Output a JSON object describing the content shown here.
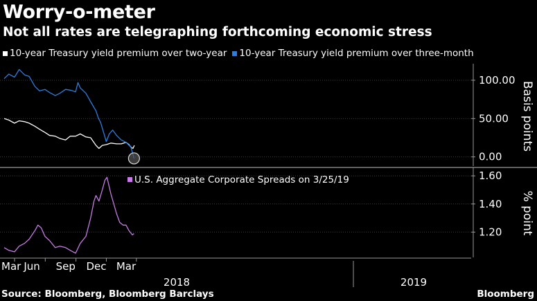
{
  "title": "Worry-o-meter",
  "subtitle": "Not all rates are telegraphing forthcoming economic stress",
  "top_chart_legend": [
    {
      "label": "10-year Treasury yield premium over two-year",
      "color": "#ffffff"
    },
    {
      "label": "10-year Treasury yield premium over three-month",
      "color": "#2f7de1"
    }
  ],
  "bottom_chart_legend": {
    "label": "U.S. Aggregate Corporate Spreads on 3/25/19",
    "color": "#c77ce6"
  },
  "x_axis": {
    "month_labels": [
      "Mar",
      "Jun",
      "Sep",
      "Dec",
      "Mar"
    ],
    "year_labels": [
      "2018",
      "2019"
    ]
  },
  "source": "Source: Bloomberg, Bloomberg Barclays",
  "brand": "Bloomberg",
  "chart_data": [
    {
      "type": "line",
      "ylabel": "Basis points",
      "ylim": [
        -12,
        118
      ],
      "yticks": [
        "0.00",
        "50.00",
        "100.00"
      ],
      "x_range": [
        "2018-03-01",
        "2019-03-29"
      ],
      "end_marker": "circle at last value",
      "grid": true,
      "series": [
        {
          "name": "10-year Treasury yield premium over two-year",
          "color": "#ffffff",
          "points": [
            [
              "2018-03-01",
              50
            ],
            [
              "2018-03-15",
              48
            ],
            [
              "2018-04-01",
              44
            ],
            [
              "2018-04-15",
              47
            ],
            [
              "2018-05-01",
              46
            ],
            [
              "2018-05-15",
              44
            ],
            [
              "2018-06-01",
              40
            ],
            [
              "2018-06-15",
              36
            ],
            [
              "2018-07-01",
              32
            ],
            [
              "2018-07-15",
              28
            ],
            [
              "2018-08-01",
              27
            ],
            [
              "2018-08-15",
              24
            ],
            [
              "2018-09-01",
              22
            ],
            [
              "2018-09-15",
              27
            ],
            [
              "2018-10-01",
              27
            ],
            [
              "2018-10-15",
              30
            ],
            [
              "2018-11-01",
              26
            ],
            [
              "2018-11-15",
              25
            ],
            [
              "2018-12-01",
              15
            ],
            [
              "2018-12-10",
              11
            ],
            [
              "2018-12-20",
              15
            ],
            [
              "2019-01-01",
              16
            ],
            [
              "2019-01-15",
              18
            ],
            [
              "2019-02-01",
              17
            ],
            [
              "2019-02-15",
              17
            ],
            [
              "2019-03-01",
              19
            ],
            [
              "2019-03-10",
              16
            ],
            [
              "2019-03-15",
              13
            ],
            [
              "2019-03-22",
              11
            ],
            [
              "2019-03-26",
              15
            ]
          ]
        },
        {
          "name": "10-year Treasury yield premium over three-month",
          "color": "#2f7de1",
          "points": [
            [
              "2018-03-01",
              102
            ],
            [
              "2018-03-15",
              108
            ],
            [
              "2018-04-01",
              104
            ],
            [
              "2018-04-15",
              114
            ],
            [
              "2018-05-01",
              107
            ],
            [
              "2018-05-15",
              105
            ],
            [
              "2018-06-01",
              92
            ],
            [
              "2018-06-15",
              86
            ],
            [
              "2018-07-01",
              88
            ],
            [
              "2018-07-15",
              84
            ],
            [
              "2018-08-01",
              80
            ],
            [
              "2018-08-15",
              83
            ],
            [
              "2018-09-01",
              88
            ],
            [
              "2018-09-15",
              87
            ],
            [
              "2018-10-01",
              85
            ],
            [
              "2018-10-08",
              97
            ],
            [
              "2018-10-15",
              90
            ],
            [
              "2018-11-01",
              83
            ],
            [
              "2018-11-15",
              72
            ],
            [
              "2018-12-01",
              60
            ],
            [
              "2018-12-08",
              51
            ],
            [
              "2018-12-15",
              45
            ],
            [
              "2019-01-01",
              20
            ],
            [
              "2019-01-10",
              30
            ],
            [
              "2019-01-20",
              35
            ],
            [
              "2019-02-01",
              28
            ],
            [
              "2019-02-15",
              22
            ],
            [
              "2019-03-01",
              19
            ],
            [
              "2019-03-10",
              15
            ],
            [
              "2019-03-15",
              14
            ],
            [
              "2019-03-20",
              6
            ],
            [
              "2019-03-25",
              -2
            ]
          ]
        }
      ]
    },
    {
      "type": "line",
      "ylabel": "% point",
      "ylim": [
        1.02,
        1.64
      ],
      "yticks": [
        "1.20",
        "1.40",
        "1.60"
      ],
      "x_range": [
        "2018-03-01",
        "2019-03-29"
      ],
      "grid": true,
      "series": [
        {
          "name": "U.S. Aggregate Corporate Spreads on 3/25/19",
          "color": "#c77ce6",
          "points": [
            [
              "2018-03-01",
              1.09
            ],
            [
              "2018-03-15",
              1.07
            ],
            [
              "2018-04-01",
              1.06
            ],
            [
              "2018-04-15",
              1.1
            ],
            [
              "2018-05-01",
              1.12
            ],
            [
              "2018-05-15",
              1.15
            ],
            [
              "2018-06-01",
              1.21
            ],
            [
              "2018-06-10",
              1.25
            ],
            [
              "2018-06-20",
              1.23
            ],
            [
              "2018-07-01",
              1.17
            ],
            [
              "2018-07-15",
              1.14
            ],
            [
              "2018-08-01",
              1.09
            ],
            [
              "2018-08-15",
              1.1
            ],
            [
              "2018-09-01",
              1.09
            ],
            [
              "2018-09-15",
              1.07
            ],
            [
              "2018-10-01",
              1.05
            ],
            [
              "2018-10-15",
              1.12
            ],
            [
              "2018-11-01",
              1.17
            ],
            [
              "2018-11-15",
              1.3
            ],
            [
              "2018-11-25",
              1.42
            ],
            [
              "2018-12-01",
              1.46
            ],
            [
              "2018-12-10",
              1.42
            ],
            [
              "2018-12-20",
              1.5
            ],
            [
              "2018-12-28",
              1.57
            ],
            [
              "2019-01-03",
              1.59
            ],
            [
              "2019-01-15",
              1.47
            ],
            [
              "2019-02-01",
              1.33
            ],
            [
              "2019-02-10",
              1.27
            ],
            [
              "2019-02-20",
              1.25
            ],
            [
              "2019-03-01",
              1.25
            ],
            [
              "2019-03-10",
              1.21
            ],
            [
              "2019-03-20",
              1.18
            ],
            [
              "2019-03-25",
              1.19
            ]
          ]
        }
      ]
    }
  ]
}
